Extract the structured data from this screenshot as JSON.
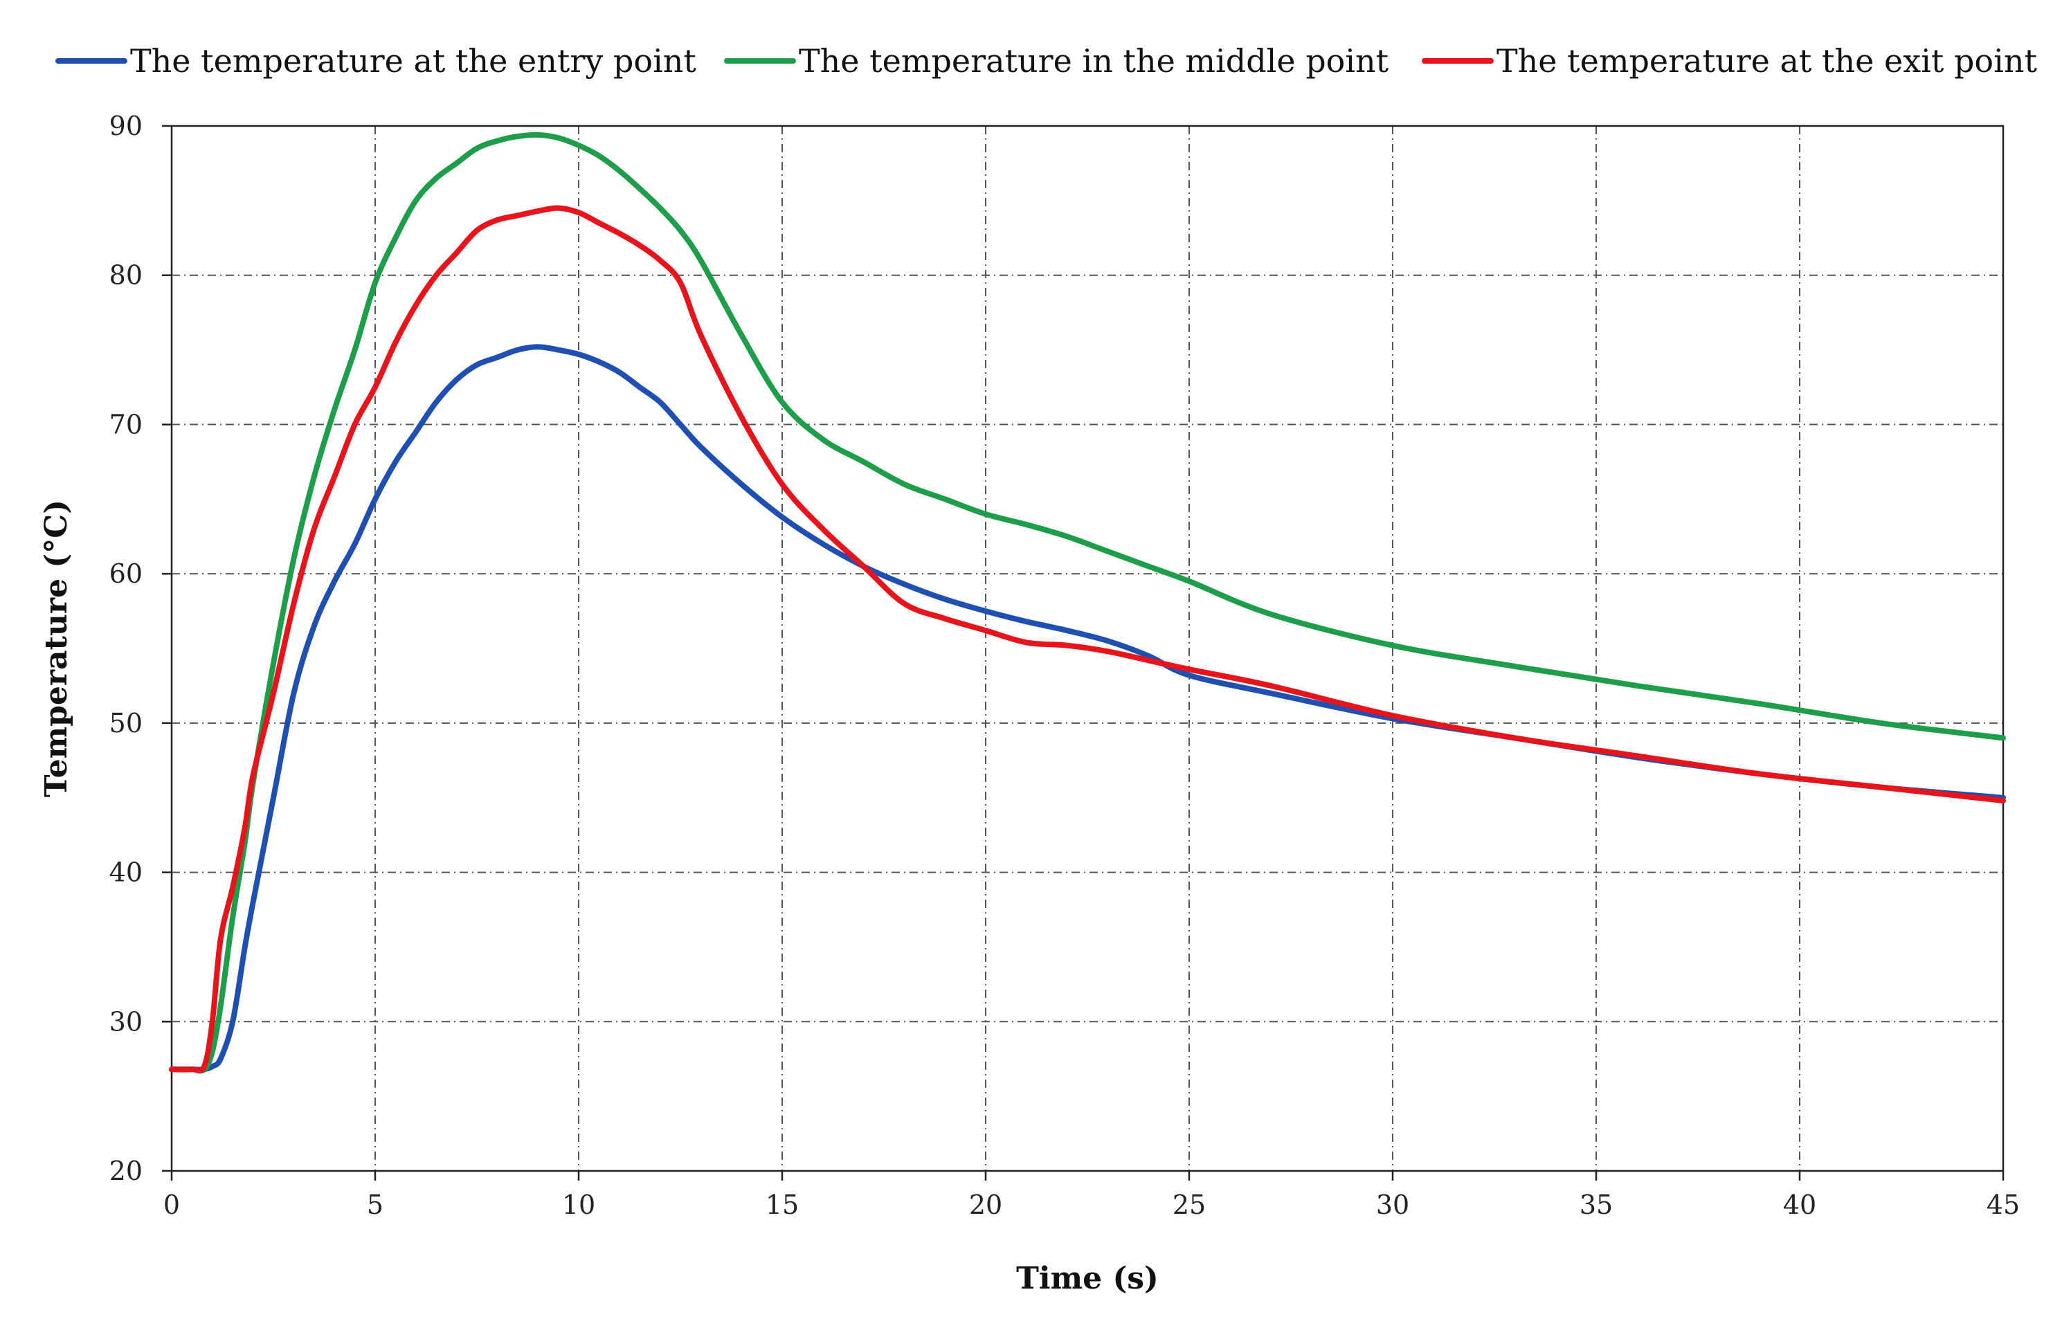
{
  "chart_data": {
    "type": "line",
    "title": "",
    "xlabel": "Time (s)",
    "ylabel": "Temperature  (°C)",
    "xlim": [
      0,
      45
    ],
    "ylim": [
      20,
      90
    ],
    "xticks": [
      0,
      5,
      10,
      15,
      20,
      25,
      30,
      35,
      40,
      45
    ],
    "yticks": [
      20,
      30,
      40,
      50,
      60,
      70,
      80,
      90
    ],
    "grid": true,
    "legend_position": "top",
    "series": [
      {
        "name": "The temperature at the entry point",
        "color": "#1f4fb0",
        "x": [
          0,
          0.5,
          0.8,
          1.0,
          1.2,
          1.5,
          1.8,
          2.0,
          2.5,
          3.0,
          3.5,
          4.0,
          4.5,
          5.0,
          5.5,
          6.0,
          6.5,
          7.0,
          7.5,
          8.0,
          8.5,
          9.0,
          9.5,
          10.0,
          10.5,
          11.0,
          11.5,
          12.0,
          12.5,
          13.0,
          14.0,
          15.0,
          16.0,
          17.0,
          18.0,
          19.0,
          20.0,
          21.0,
          22.0,
          23.0,
          24.0,
          25.0,
          27.0,
          30.0,
          33.0,
          36.0,
          39.0,
          42.0,
          45.0
        ],
        "y": [
          26.8,
          26.8,
          26.8,
          27.0,
          27.5,
          30.0,
          35.0,
          38.0,
          45.0,
          52.0,
          56.5,
          59.5,
          62.0,
          65.0,
          67.5,
          69.5,
          71.5,
          73.0,
          74.0,
          74.5,
          75.0,
          75.2,
          75.0,
          74.7,
          74.2,
          73.5,
          72.5,
          71.5,
          70.0,
          68.5,
          66.0,
          63.8,
          62.0,
          60.5,
          59.3,
          58.3,
          57.5,
          56.8,
          56.2,
          55.5,
          54.5,
          53.2,
          52.0,
          50.3,
          49.0,
          47.7,
          46.6,
          45.7,
          45.0
        ]
      },
      {
        "name": "The temperature in the middle point",
        "color": "#1e9e4a",
        "x": [
          0,
          0.5,
          0.8,
          1.0,
          1.2,
          1.5,
          1.8,
          2.0,
          2.5,
          3.0,
          3.5,
          4.0,
          4.5,
          5.0,
          5.5,
          6.0,
          6.5,
          7.0,
          7.5,
          8.0,
          8.5,
          9.0,
          9.5,
          10.0,
          10.5,
          11.0,
          11.5,
          12.0,
          12.5,
          13.0,
          14.0,
          15.0,
          16.0,
          17.0,
          18.0,
          19.0,
          20.0,
          21.0,
          22.0,
          23.0,
          24.0,
          25.0,
          27.0,
          30.0,
          33.0,
          36.0,
          39.0,
          42.0,
          45.0
        ],
        "y": [
          26.8,
          26.8,
          26.8,
          28.0,
          31.0,
          37.0,
          42.0,
          46.0,
          54.0,
          61.0,
          66.5,
          71.0,
          75.0,
          79.5,
          82.5,
          85.0,
          86.5,
          87.5,
          88.5,
          89.0,
          89.3,
          89.4,
          89.2,
          88.7,
          88.0,
          87.0,
          85.8,
          84.5,
          83.0,
          81.0,
          76.0,
          71.5,
          69.0,
          67.5,
          66.0,
          65.0,
          64.0,
          63.3,
          62.5,
          61.5,
          60.5,
          59.5,
          57.3,
          55.2,
          53.8,
          52.5,
          51.3,
          50.0,
          49.0
        ]
      },
      {
        "name": "The temperature at the exit point",
        "color": "#e8141b",
        "x": [
          0,
          0.5,
          0.8,
          1.0,
          1.2,
          1.5,
          1.8,
          2.0,
          2.5,
          3.0,
          3.5,
          4.0,
          4.5,
          5.0,
          5.5,
          6.0,
          6.5,
          7.0,
          7.5,
          8.0,
          8.5,
          9.0,
          9.5,
          10.0,
          10.5,
          11.0,
          11.5,
          12.0,
          12.5,
          13.0,
          14.0,
          15.0,
          16.0,
          17.0,
          18.0,
          19.0,
          20.0,
          21.0,
          22.0,
          23.0,
          24.0,
          25.0,
          27.0,
          30.0,
          33.0,
          36.0,
          39.0,
          42.0,
          45.0
        ],
        "y": [
          26.8,
          26.8,
          27.0,
          30.0,
          35.5,
          39.0,
          43.0,
          46.5,
          52.0,
          58.0,
          63.0,
          66.5,
          70.0,
          72.5,
          75.5,
          78.0,
          80.0,
          81.5,
          83.0,
          83.7,
          84.0,
          84.3,
          84.5,
          84.2,
          83.5,
          82.8,
          82.0,
          81.0,
          79.5,
          76.0,
          70.5,
          66.0,
          63.0,
          60.5,
          58.0,
          57.0,
          56.2,
          55.4,
          55.2,
          54.8,
          54.2,
          53.6,
          52.5,
          50.5,
          49.0,
          47.8,
          46.6,
          45.7,
          44.8
        ]
      }
    ]
  }
}
